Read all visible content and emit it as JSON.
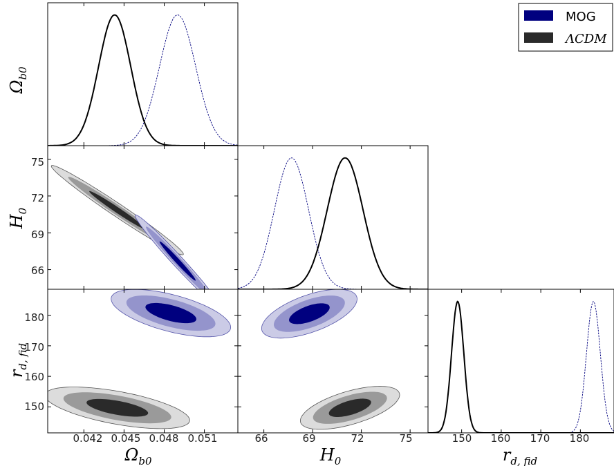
{
  "chart_data": {
    "type": "corner",
    "parameters": [
      {
        "id": "ob",
        "label_main": "Ω",
        "label_sub": "b0",
        "range": [
          0.0393,
          0.0535
        ],
        "ticks": [
          0.042,
          0.045,
          0.048,
          0.051
        ],
        "tick_labels": [
          "0.042",
          "0.045",
          "0.048",
          "0.051"
        ]
      },
      {
        "id": "h0",
        "label_main": "H",
        "label_sub": "0",
        "range": [
          64.4,
          76.1
        ],
        "ticks": [
          66,
          69,
          72,
          75
        ],
        "tick_labels": [
          "66",
          "69",
          "72",
          "75"
        ]
      },
      {
        "id": "rd",
        "label_main": "r",
        "label_sub": "d, fid",
        "range": [
          141.5,
          188.5
        ],
        "ticks": [
          150,
          160,
          170,
          180
        ],
        "tick_labels": [
          "150",
          "160",
          "170",
          "180"
        ],
        "x_tick_labels": [
          "150",
          "160",
          "170",
          "180"
        ]
      }
    ],
    "legend": {
      "placement": "top-right",
      "entries": [
        {
          "label": "MOG",
          "math": false,
          "color": "#00007f"
        },
        {
          "label": "ΛCDM",
          "math": true,
          "color": "#2a2a2a"
        }
      ]
    },
    "series": [
      {
        "name": "MOG",
        "line_style": "dashed",
        "line_color": "#00007f",
        "fill_colors": [
          "#00007f",
          "#9494cc",
          "#cbcbe6"
        ],
        "marginals": {
          "ob": {
            "mean": 0.049,
            "sigma": 0.00135
          },
          "h0": {
            "mean": 67.7,
            "sigma": 1.05
          },
          "rd": {
            "mean": 183.3,
            "sigma": 1.75
          }
        },
        "contours": {
          "h0_vs_ob": {
            "mean": [
              0.049,
              66.7
            ],
            "sigma": [
              0.00135,
              1.6
            ],
            "rho": -0.985
          },
          "rd_vs_ob": {
            "mean": [
              0.0485,
              180.7
            ],
            "sigma": [
              0.0019,
              3.3
            ],
            "rho": -0.6
          },
          "rd_vs_h0": {
            "mean": [
              68.8,
              180.5
            ],
            "sigma": [
              1.25,
              3.4
            ],
            "rho": 0.6
          }
        }
      },
      {
        "name": "ΛCDM",
        "line_style": "solid",
        "line_color": "#000000",
        "fill_colors": [
          "#2a2a2a",
          "#9a9a9a",
          "#dcdcdc"
        ],
        "marginals": {
          "ob": {
            "mean": 0.0443,
            "sigma": 0.0012
          },
          "h0": {
            "mean": 71.0,
            "sigma": 1.1
          },
          "rd": {
            "mean": 149.0,
            "sigma": 1.55
          }
        },
        "contours": {
          "h0_vs_ob": {
            "mean": [
              0.0445,
              70.85
            ],
            "sigma": [
              0.0021,
              1.55
            ],
            "rho": -0.985
          },
          "rd_vs_ob": {
            "mean": [
              0.0445,
              149.7
            ],
            "sigma": [
              0.0023,
              2.9
            ],
            "rho": -0.6
          },
          "rd_vs_h0": {
            "mean": [
              71.3,
              149.7
            ],
            "sigma": [
              1.3,
              3.0
            ],
            "rho": 0.6
          }
        }
      }
    ]
  }
}
